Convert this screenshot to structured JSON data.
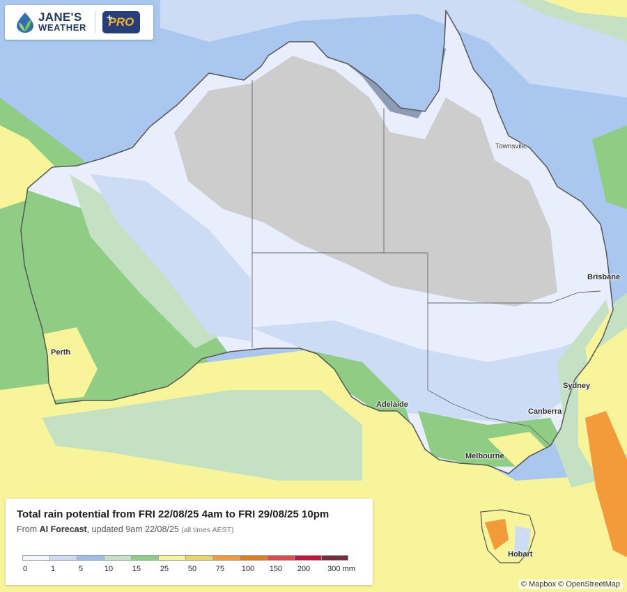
{
  "brand": {
    "name_line1": "JANE'S",
    "name_line2": "WEATHER",
    "badge": "PRO",
    "badge_plus": "+"
  },
  "colors": {
    "ocean_background": "#a9c7ef",
    "dry_land": "#cdcdcd",
    "pro_badge": "#263f7a",
    "pro_text": "#f6b327"
  },
  "map": {
    "cities": [
      {
        "name": "Townsville"
      },
      {
        "name": "Brisbane"
      },
      {
        "name": "Perth"
      },
      {
        "name": "Sydney"
      },
      {
        "name": "Adelaide"
      },
      {
        "name": "Canberra"
      },
      {
        "name": "Melbourne"
      },
      {
        "name": "Hobart"
      }
    ]
  },
  "legend": {
    "title": "Total rain potential from FRI 22/08/25 4am to FRI 29/08/25 10pm",
    "subtitle_prefix": "From ",
    "subtitle_source": "AI Forecast",
    "subtitle_updated": ", updated 9am 22/08/25 ",
    "subtitle_tz": "(all times AEST)",
    "colors": [
      "#f4f7fd",
      "#cddcf5",
      "#9fbde8",
      "#c4e2c3",
      "#8fcd84",
      "#f7f49a",
      "#ecd563",
      "#f39a3a",
      "#e07d1b",
      "#e04a4a",
      "#c4153d",
      "#7a2b3b"
    ],
    "ticks": [
      "0",
      "1",
      "5",
      "10",
      "15",
      "25",
      "50",
      "75",
      "100",
      "150",
      "200",
      "300 mm"
    ]
  },
  "attribution": "© Mapbox © OpenStreetMap"
}
